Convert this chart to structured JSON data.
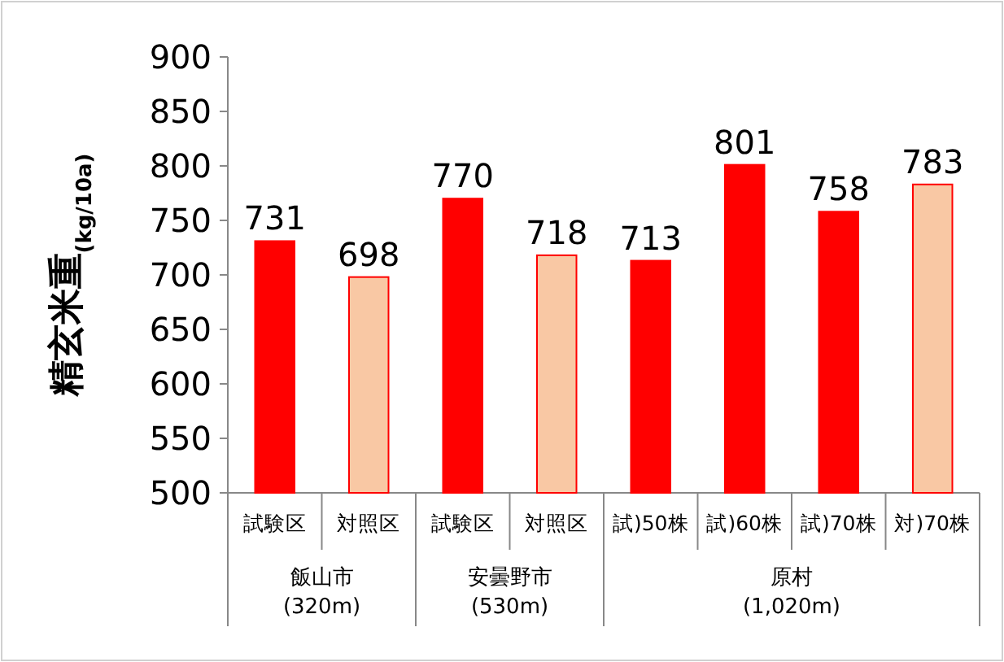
{
  "chart_data": {
    "type": "bar",
    "ylabel": "精玄米重$_{(kg/10a)}$",
    "categories": [
      "試験区",
      "対照区",
      "試験区",
      "対照区",
      "試)50株",
      "試)60株",
      "試)70株",
      "対)70株"
    ],
    "values": [
      731,
      698,
      770,
      718,
      713,
      801,
      758,
      783
    ],
    "colors": [
      "#ff0000",
      "#f9c8a4",
      "#ff0000",
      "#f9c8a4",
      "#ff0000",
      "#ff0000",
      "#ff0000",
      "#f9c8a4"
    ],
    "ylim": [
      500,
      900
    ],
    "yticks": [
      500,
      550,
      600,
      650,
      700,
      750,
      800,
      850,
      900
    ],
    "data_labels": true,
    "annotations": [
      "飯山市\n(320m)",
      "安曇野市\n(530m)",
      "原村\n(1,020m)"
    ]
  }
}
